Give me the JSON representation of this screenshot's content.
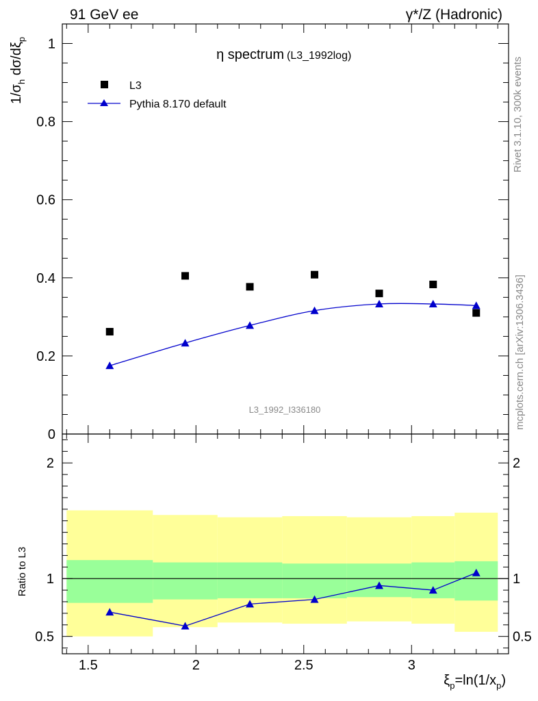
{
  "header": {
    "left": "91 GeV ee",
    "right": "γ*/Z (Hadronic)"
  },
  "side": {
    "top": "Rivet 3.1.10,  300k events",
    "bottom": "mcplots.cern.ch [arXiv:1306.3436]"
  },
  "chart_data": [
    {
      "type": "scatter",
      "title": "η spectrum",
      "title_suffix": "(L3_1992log)",
      "watermark": "L3_1992_I336180",
      "ylabel": "1/σh dσ/dξp",
      "ylim": [
        0,
        1.05
      ],
      "xlim": [
        1.38,
        3.45
      ],
      "yticks": [
        0,
        0.2,
        0.4,
        0.6,
        0.8,
        1
      ],
      "ytick_labels": [
        "0",
        "0.2",
        "0.4",
        "0.6",
        "0.8",
        "1"
      ],
      "legend_position": "top-left",
      "series": [
        {
          "name": "L3",
          "style": "square-markers",
          "color": "#000000",
          "x": [
            1.6,
            1.95,
            2.25,
            2.55,
            2.85,
            3.1,
            3.3
          ],
          "values": [
            0.262,
            0.405,
            0.377,
            0.408,
            0.36,
            0.383,
            0.31
          ]
        },
        {
          "name": "Pythia 8.170 default",
          "style": "line-triangle-markers",
          "color": "#0000cc",
          "x": [
            1.6,
            1.95,
            2.25,
            2.55,
            2.85,
            3.1,
            3.3
          ],
          "values": [
            0.175,
            0.233,
            0.278,
            0.316,
            0.333,
            0.333,
            0.329
          ]
        }
      ]
    },
    {
      "type": "line",
      "ylabel": "Ratio to L3",
      "xlabel": "ξp=ln(1/xp)",
      "ylim": [
        0.35,
        2.25
      ],
      "xlim": [
        1.38,
        3.45
      ],
      "xticks": [
        1.5,
        2,
        2.5,
        3
      ],
      "xtick_labels": [
        "1.5",
        "2",
        "2.5",
        "3"
      ],
      "yticks": [
        0.5,
        1,
        2
      ],
      "ytick_labels": [
        "0.5",
        "1",
        "2"
      ],
      "reference_line": 1,
      "bands": {
        "colors": {
          "inner": "#99ff99",
          "outer": "#ffff99"
        },
        "bins": [
          {
            "x0": 1.4,
            "x1": 1.8,
            "outer": [
              0.5,
              1.59
            ],
            "inner": [
              0.79,
              1.16
            ]
          },
          {
            "x0": 1.8,
            "x1": 2.1,
            "outer": [
              0.58,
              1.55
            ],
            "inner": [
              0.82,
              1.14
            ]
          },
          {
            "x0": 2.1,
            "x1": 2.4,
            "outer": [
              0.62,
              1.53
            ],
            "inner": [
              0.83,
              1.14
            ]
          },
          {
            "x0": 2.4,
            "x1": 2.7,
            "outer": [
              0.61,
              1.54
            ],
            "inner": [
              0.83,
              1.13
            ]
          },
          {
            "x0": 2.7,
            "x1": 3.0,
            "outer": [
              0.63,
              1.53
            ],
            "inner": [
              0.84,
              1.13
            ]
          },
          {
            "x0": 3.0,
            "x1": 3.2,
            "outer": [
              0.61,
              1.54
            ],
            "inner": [
              0.83,
              1.14
            ]
          },
          {
            "x0": 3.2,
            "x1": 3.4,
            "outer": [
              0.54,
              1.57
            ],
            "inner": [
              0.81,
              1.15
            ]
          }
        ]
      },
      "series": [
        {
          "name": "Pythia 8.170 default",
          "color": "#0000cc",
          "x": [
            1.6,
            1.95,
            2.25,
            2.55,
            2.85,
            3.1,
            3.3
          ],
          "values": [
            0.71,
            0.59,
            0.78,
            0.82,
            0.94,
            0.9,
            1.05
          ]
        }
      ]
    }
  ]
}
